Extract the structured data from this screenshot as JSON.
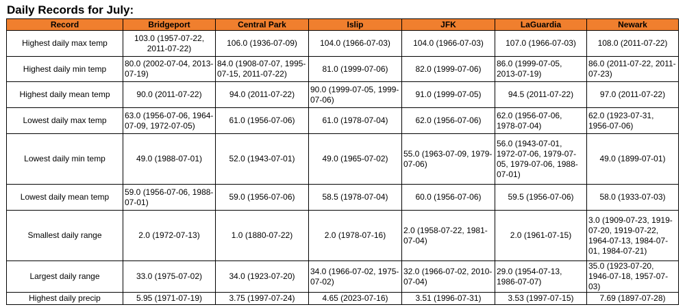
{
  "title": "Daily Records for July:",
  "table": {
    "header": {
      "record": "Record",
      "bridgeport": "Bridgeport",
      "central_park": "Central Park",
      "islip": "Islip",
      "jfk": "JFK",
      "laguardia": "LaGuardia",
      "newark": "Newark"
    },
    "rows": [
      {
        "record": "Highest daily max temp",
        "bridgeport": "103.0 (1957-07-22, 2011-07-22)",
        "central_park": "106.0 (1936-07-09)",
        "islip": "104.0 (1966-07-03)",
        "jfk": "104.0 (1966-07-03)",
        "laguardia": "107.0 (1966-07-03)",
        "newark": "108.0 (2011-07-22)"
      },
      {
        "record": "Highest daily min temp",
        "bridgeport": "80.0 (2002-07-04, 2013-07-19)",
        "central_park": "84.0 (1908-07-07, 1995-07-15, 2011-07-22)",
        "islip": "81.0 (1999-07-06)",
        "jfk": "82.0 (1999-07-06)",
        "laguardia": "86.0 (1999-07-05, 2013-07-19)",
        "newark": "86.0 (2011-07-22, 2011-07-23)"
      },
      {
        "record": "Highest daily mean temp",
        "bridgeport": "90.0 (2011-07-22)",
        "central_park": "94.0 (2011-07-22)",
        "islip": "90.0 (1999-07-05, 1999-07-06)",
        "jfk": "91.0 (1999-07-05)",
        "laguardia": "94.5 (2011-07-22)",
        "newark": "97.0 (2011-07-22)"
      },
      {
        "record": "Lowest daily max temp",
        "bridgeport": "63.0 (1956-07-06, 1964-07-09, 1972-07-05)",
        "central_park": "61.0 (1956-07-06)",
        "islip": "61.0 (1978-07-04)",
        "jfk": "62.0 (1956-07-06)",
        "laguardia": "62.0 (1956-07-06, 1978-07-04)",
        "newark": "62.0 (1923-07-31, 1956-07-06)"
      },
      {
        "record": "Lowest daily min temp",
        "bridgeport": "49.0 (1988-07-01)",
        "central_park": "52.0 (1943-07-01)",
        "islip": "49.0 (1965-07-02)",
        "jfk": "55.0 (1963-07-09, 1979-07-06)",
        "laguardia": "56.0 (1943-07-01, 1972-07-06, 1979-07-05, 1979-07-06, 1988-07-01)",
        "newark": "49.0 (1899-07-01)"
      },
      {
        "record": "Lowest daily mean temp",
        "bridgeport": "59.0 (1956-07-06, 1988-07-01)",
        "central_park": "59.0 (1956-07-06)",
        "islip": "58.5 (1978-07-04)",
        "jfk": "60.0 (1956-07-06)",
        "laguardia": "59.5 (1956-07-06)",
        "newark": "58.0 (1933-07-03)"
      },
      {
        "record": "Smallest daily range",
        "bridgeport": "2.0 (1972-07-13)",
        "central_park": "1.0 (1880-07-22)",
        "islip": "2.0 (1978-07-16)",
        "jfk": "2.0 (1958-07-22, 1981-07-04)",
        "laguardia": "2.0 (1961-07-15)",
        "newark": "3.0 (1909-07-23, 1919-07-20, 1919-07-22, 1964-07-13, 1984-07-01, 1984-07-21)"
      },
      {
        "record": "Largest daily range",
        "bridgeport": "33.0 (1975-07-02)",
        "central_park": "34.0 (1923-07-20)",
        "islip": "34.0 (1966-07-02, 1975-07-02)",
        "jfk": "32.0 (1966-07-02, 2010-07-04)",
        "laguardia": "29.0 (1954-07-13, 1986-07-07)",
        "newark": "35.0 (1923-07-20, 1946-07-18, 1957-07-03)"
      },
      {
        "record": "Highest daily precip",
        "bridgeport": "5.95 (1971-07-19)",
        "central_park": "3.75 (1997-07-24)",
        "islip": "4.65 (2023-07-16)",
        "jfk": "3.51 (1996-07-31)",
        "laguardia": "3.53 (1997-07-15)",
        "newark": "7.69 (1897-07-28)"
      }
    ]
  }
}
